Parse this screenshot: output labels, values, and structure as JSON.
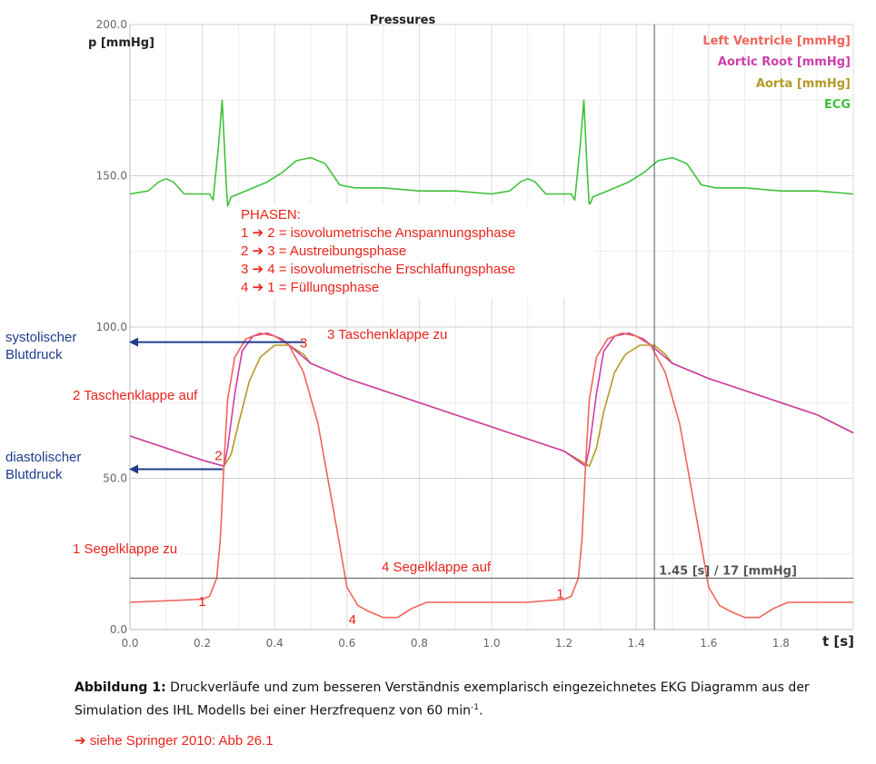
{
  "chart_data": {
    "type": "line",
    "title": "Pressures",
    "ylabel": "p [mmHg]",
    "xlabel": "t [s]",
    "xlim": [
      0,
      2.0
    ],
    "ylim": [
      0,
      200
    ],
    "x_ticks": [
      "0.0",
      "0.2",
      "0.4",
      "0.6",
      "0.8",
      "1.0",
      "1.2",
      "1.4",
      "1.6",
      "1.8"
    ],
    "y_ticks": [
      "0.0",
      "50.0",
      "100.0",
      "150.0",
      "200.0"
    ],
    "grid": true,
    "legend_position": "top-right",
    "series": [
      {
        "name": "Left Ventricle [mmHg]",
        "color": "#f0645a",
        "points": [
          [
            0,
            9
          ],
          [
            0.2,
            10
          ],
          [
            0.22,
            11
          ],
          [
            0.24,
            17
          ],
          [
            0.25,
            30
          ],
          [
            0.26,
            55
          ],
          [
            0.27,
            76
          ],
          [
            0.29,
            90
          ],
          [
            0.32,
            96
          ],
          [
            0.36,
            98
          ],
          [
            0.4,
            97
          ],
          [
            0.44,
            94
          ],
          [
            0.48,
            85
          ],
          [
            0.52,
            68
          ],
          [
            0.55,
            48
          ],
          [
            0.58,
            28
          ],
          [
            0.6,
            14
          ],
          [
            0.63,
            8
          ],
          [
            0.66,
            6
          ],
          [
            0.7,
            4
          ],
          [
            0.74,
            4
          ],
          [
            0.78,
            7
          ],
          [
            0.82,
            9
          ],
          [
            0.9,
            9
          ],
          [
            1.0,
            9
          ],
          [
            1.1,
            9
          ],
          [
            1.2,
            10
          ],
          [
            1.22,
            11
          ],
          [
            1.24,
            17
          ],
          [
            1.25,
            30
          ],
          [
            1.26,
            55
          ],
          [
            1.27,
            76
          ],
          [
            1.29,
            90
          ],
          [
            1.32,
            96
          ],
          [
            1.36,
            98
          ],
          [
            1.4,
            97
          ],
          [
            1.44,
            94
          ],
          [
            1.48,
            85
          ],
          [
            1.52,
            68
          ],
          [
            1.55,
            48
          ],
          [
            1.58,
            28
          ],
          [
            1.6,
            14
          ],
          [
            1.63,
            8
          ],
          [
            1.66,
            6
          ],
          [
            1.7,
            4
          ],
          [
            1.74,
            4
          ],
          [
            1.78,
            7
          ],
          [
            1.82,
            9
          ],
          [
            1.9,
            9
          ],
          [
            2.0,
            9
          ]
        ]
      },
      {
        "name": "Aortic Root [mmHg]",
        "color": "#cc3fa9",
        "points": [
          [
            0,
            64
          ],
          [
            0.1,
            60
          ],
          [
            0.2,
            56
          ],
          [
            0.26,
            54
          ],
          [
            0.27,
            60
          ],
          [
            0.29,
            78
          ],
          [
            0.31,
            92
          ],
          [
            0.34,
            97
          ],
          [
            0.38,
            98
          ],
          [
            0.42,
            96
          ],
          [
            0.46,
            92
          ],
          [
            0.5,
            88
          ],
          [
            0.6,
            83
          ],
          [
            0.7,
            79
          ],
          [
            0.8,
            75
          ],
          [
            0.9,
            71
          ],
          [
            1.0,
            67
          ],
          [
            1.1,
            63
          ],
          [
            1.2,
            59
          ],
          [
            1.26,
            54
          ],
          [
            1.27,
            60
          ],
          [
            1.29,
            78
          ],
          [
            1.31,
            92
          ],
          [
            1.34,
            97
          ],
          [
            1.38,
            98
          ],
          [
            1.42,
            96
          ],
          [
            1.46,
            92
          ],
          [
            1.5,
            88
          ],
          [
            1.6,
            83
          ],
          [
            1.7,
            79
          ],
          [
            1.8,
            75
          ],
          [
            1.9,
            71
          ],
          [
            2.0,
            65
          ]
        ]
      },
      {
        "name": "Aorta [mmHg]",
        "color": "#b59a22",
        "points": [
          [
            0,
            64
          ],
          [
            0.1,
            60
          ],
          [
            0.2,
            56
          ],
          [
            0.26,
            54
          ],
          [
            0.28,
            58
          ],
          [
            0.3,
            68
          ],
          [
            0.33,
            82
          ],
          [
            0.36,
            90
          ],
          [
            0.4,
            94
          ],
          [
            0.44,
            94
          ],
          [
            0.48,
            91
          ],
          [
            0.5,
            88
          ],
          [
            0.6,
            83
          ],
          [
            0.7,
            79
          ],
          [
            0.8,
            75
          ],
          [
            0.9,
            71
          ],
          [
            1.0,
            67
          ],
          [
            1.1,
            63
          ],
          [
            1.2,
            59
          ],
          [
            1.27,
            54
          ],
          [
            1.29,
            60
          ],
          [
            1.31,
            72
          ],
          [
            1.34,
            85
          ],
          [
            1.37,
            91
          ],
          [
            1.41,
            94
          ],
          [
            1.45,
            94
          ],
          [
            1.48,
            91
          ],
          [
            1.5,
            88
          ],
          [
            1.6,
            83
          ],
          [
            1.7,
            79
          ],
          [
            1.8,
            75
          ],
          [
            1.9,
            71
          ],
          [
            2.0,
            65
          ]
        ]
      },
      {
        "name": "ECG",
        "color": "#3ec23a",
        "points": [
          [
            0,
            144
          ],
          [
            0.05,
            145
          ],
          [
            0.08,
            148
          ],
          [
            0.1,
            149
          ],
          [
            0.12,
            148
          ],
          [
            0.15,
            144
          ],
          [
            0.22,
            144
          ],
          [
            0.23,
            142
          ],
          [
            0.245,
            160
          ],
          [
            0.255,
            175
          ],
          [
            0.265,
            150
          ],
          [
            0.27,
            140
          ],
          [
            0.28,
            143
          ],
          [
            0.32,
            145
          ],
          [
            0.38,
            148
          ],
          [
            0.42,
            151
          ],
          [
            0.46,
            155
          ],
          [
            0.5,
            156
          ],
          [
            0.54,
            154
          ],
          [
            0.58,
            147
          ],
          [
            0.62,
            146
          ],
          [
            0.7,
            146
          ],
          [
            0.8,
            145
          ],
          [
            0.9,
            145
          ],
          [
            1.0,
            144
          ],
          [
            1.05,
            145
          ],
          [
            1.08,
            148
          ],
          [
            1.1,
            149
          ],
          [
            1.12,
            148
          ],
          [
            1.15,
            144
          ],
          [
            1.22,
            144
          ],
          [
            1.23,
            142
          ],
          [
            1.245,
            160
          ],
          [
            1.255,
            175
          ],
          [
            1.265,
            150
          ],
          [
            1.27,
            140
          ],
          [
            1.28,
            143
          ],
          [
            1.32,
            145
          ],
          [
            1.38,
            148
          ],
          [
            1.42,
            151
          ],
          [
            1.46,
            155
          ],
          [
            1.5,
            156
          ],
          [
            1.54,
            154
          ],
          [
            1.58,
            147
          ],
          [
            1.62,
            146
          ],
          [
            1.7,
            146
          ],
          [
            1.8,
            145
          ],
          [
            1.9,
            145
          ],
          [
            2.0,
            144
          ]
        ]
      }
    ],
    "cursor": {
      "x": 1.45,
      "y": 17,
      "label": "1.45 [s] / 17 [mmHg]"
    },
    "annotations": {
      "phases_title": "PHASEN:",
      "phases": [
        "1 ➔ 2 = isovolumetrische Anspannungsphase",
        "2 ➔ 3 = Austreibungsphase",
        "3 ➔ 4 = isovolumetrische Erschlaffungsphase",
        "4 ➔ 1 = Füllungsphase"
      ],
      "points": [
        {
          "label": "1",
          "x": 0.22,
          "y": 9
        },
        {
          "label": "2",
          "x": 0.26,
          "y": 56
        },
        {
          "label": "3",
          "x": 0.49,
          "y": 92
        },
        {
          "label": "4",
          "x": 0.63,
          "y": 6
        },
        {
          "label": "1",
          "x": 1.21,
          "y": 11
        }
      ],
      "side_notes": {
        "systolic_line1": "systolischer",
        "systolic_line2": "Blutdruck",
        "systolic_value": 95,
        "diastolic_line1": "diastolischer",
        "diastolic_line2": "Blutdruck",
        "diastolic_value": 53,
        "taschenklappe_auf": "2 Taschenklappe auf",
        "taschenklappe_zu": "3 Taschenklappe zu",
        "segelklappe_zu": "1 Segelklappe zu",
        "segelklappe_auf": "4 Segelklappe auf"
      }
    }
  },
  "caption": {
    "label": "Abbildung 1:",
    "text": " Druckverläufe und zum besseren Verständnis exemplarisch eingezeichnetes EKG Diagramm aus der Simulation des IHL Modells bei einer Herzfrequenz von 60 min",
    "superscript": "-1",
    "end": "."
  },
  "reference": "➔ siehe Springer 2010: Abb 26.1"
}
